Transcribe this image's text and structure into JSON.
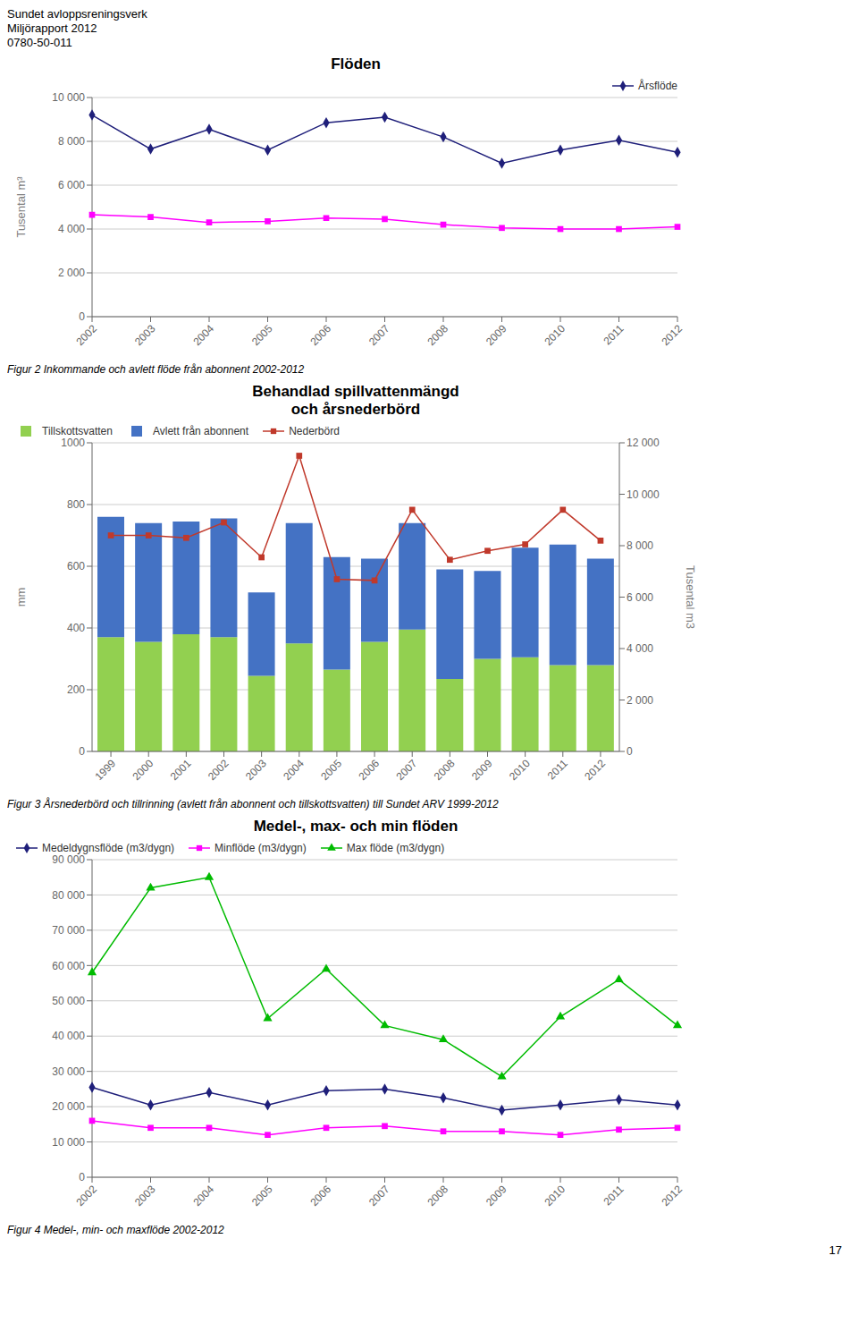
{
  "header_lines": [
    "Sundet avloppsreningsverk",
    "Miljörapport 2012",
    "0780-50-011"
  ],
  "page_number": "17",
  "chart_data": [
    {
      "type": "line",
      "title": "Flöden",
      "categories": [
        "2002",
        "2003",
        "2004",
        "2005",
        "2006",
        "2007",
        "2008",
        "2009",
        "2010",
        "2011",
        "2012"
      ],
      "series": [
        {
          "name": "Årsflöde",
          "color": "#1F1F7A",
          "marker": "diamond",
          "values": [
            9200,
            7650,
            8550,
            7600,
            8850,
            9100,
            8200,
            7000,
            7600,
            8050,
            7500
          ]
        },
        {
          "color": "#FF00FF",
          "marker": "square",
          "values": [
            4650,
            4550,
            4300,
            4350,
            4500,
            4450,
            4200,
            4050,
            4000,
            4000,
            4100
          ]
        }
      ],
      "ylabel": "Tusental m³",
      "ylim": [
        0,
        10000
      ],
      "yticks": [
        0,
        {
          "value": 2000,
          "label": "2 000"
        },
        {
          "value": 4000,
          "label": "4 000"
        },
        {
          "value": 6000,
          "label": "6 000"
        },
        {
          "value": 8000,
          "label": "8 000"
        },
        {
          "value": 10000,
          "label": "10 000"
        }
      ],
      "grid": true,
      "legend": "upper right",
      "caption": "Figur 2 Inkommande och avlett flöde från abonnent 2002-2012"
    },
    {
      "type": "bar",
      "stacked": true,
      "title": "Behandlad spillvattenmängd\noch årsnederbörd",
      "categories": [
        "1999",
        "2000",
        "2001",
        "2002",
        "2003",
        "2004",
        "2005",
        "2006",
        "2007",
        "2008",
        "2009",
        "2010",
        "2011",
        "2012"
      ],
      "series": [
        {
          "name": "Tillskottsvatten",
          "type": "bar",
          "color": "#92D050",
          "values": [
            370,
            355,
            380,
            370,
            245,
            350,
            265,
            355,
            395,
            235,
            300,
            305,
            280,
            280
          ]
        },
        {
          "name": "Avlett från abonnent",
          "type": "bar",
          "color": "#4472C4",
          "values": [
            390,
            385,
            365,
            385,
            270,
            390,
            365,
            270,
            345,
            355,
            285,
            355,
            390,
            345
          ]
        },
        {
          "name": "Nederbörd",
          "type": "line",
          "color": "#C0392B",
          "marker": "square",
          "values": [
            700,
            700,
            692,
            742,
            629,
            958,
            558,
            554,
            783,
            621,
            650,
            671,
            783,
            683
          ]
        }
      ],
      "ylabel": "mm",
      "ylim": [
        0,
        1000
      ],
      "yticks": [
        0,
        200,
        400,
        600,
        800,
        1000
      ],
      "y2label": "Tusental m3",
      "y2lim": [
        0,
        12000
      ],
      "y2ticks": [
        0,
        {
          "value": 2000,
          "label": "2 000"
        },
        {
          "value": 4000,
          "label": "4 000"
        },
        {
          "value": 6000,
          "label": "6 000"
        },
        {
          "value": 8000,
          "label": "8 000"
        },
        {
          "value": 10000,
          "label": "10 000"
        },
        {
          "value": 12000,
          "label": "12 000"
        }
      ],
      "grid": true,
      "legend": "upper left",
      "caption": "Figur 3 Årsnederbörd och tillrinning (avlett från abonnent och tillskottsvatten) till Sundet ARV 1999-2012"
    },
    {
      "type": "line",
      "title": "Medel-, max- och min flöden",
      "categories": [
        "2002",
        "2003",
        "2004",
        "2005",
        "2006",
        "2007",
        "2008",
        "2009",
        "2010",
        "2011",
        "2012"
      ],
      "series": [
        {
          "name": "Medeldygnsflöde (m3/dygn)",
          "color": "#1F1F7A",
          "marker": "diamond",
          "values": [
            25500,
            20500,
            24000,
            20500,
            24500,
            25000,
            22500,
            19000,
            20500,
            22000,
            20500
          ]
        },
        {
          "name": "Minflöde (m3/dygn)",
          "color": "#FF00FF",
          "marker": "square",
          "values": [
            16000,
            14000,
            14000,
            12000,
            14000,
            14500,
            13000,
            13000,
            12000,
            13500,
            14000
          ]
        },
        {
          "name": "Max flöde (m3/dygn)",
          "color": "#00BB00",
          "marker": "triangle",
          "values": [
            58000,
            82000,
            85000,
            45000,
            59000,
            43000,
            39000,
            28500,
            45500,
            56000,
            43000
          ]
        }
      ],
      "ylim": [
        0,
        90000
      ],
      "yticks": [
        0,
        {
          "value": 10000,
          "label": "10 000"
        },
        {
          "value": 20000,
          "label": "20 000"
        },
        {
          "value": 30000,
          "label": "30 000"
        },
        {
          "value": 40000,
          "label": "40 000"
        },
        {
          "value": 50000,
          "label": "50 000"
        },
        {
          "value": 60000,
          "label": "60 000"
        },
        {
          "value": 70000,
          "label": "70 000"
        },
        {
          "value": 80000,
          "label": "80 000"
        },
        {
          "value": 90000,
          "label": "90 000"
        }
      ],
      "grid": true,
      "legend": "upper left",
      "caption": "Figur 4 Medel-, min- och maxflöde 2002-2012"
    }
  ]
}
